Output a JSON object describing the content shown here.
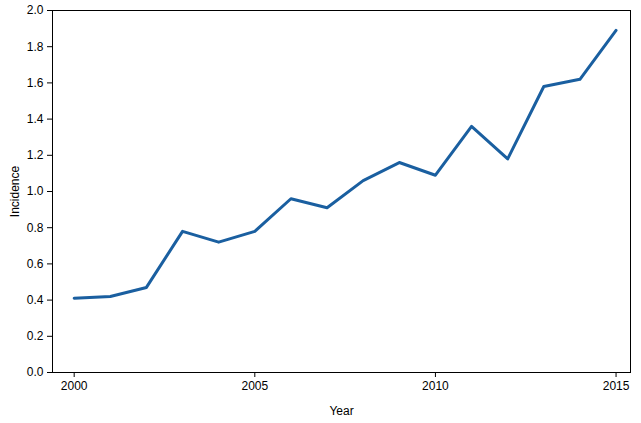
{
  "chart_data": {
    "type": "line",
    "x_label": "Year",
    "y_label": "Incidence",
    "x": [
      2000,
      2001,
      2002,
      2003,
      2004,
      2005,
      2006,
      2007,
      2008,
      2009,
      2010,
      2011,
      2012,
      2013,
      2014,
      2015
    ],
    "values": [
      0.41,
      0.42,
      0.47,
      0.78,
      0.72,
      0.78,
      0.96,
      0.91,
      1.06,
      1.16,
      1.09,
      1.36,
      1.18,
      1.58,
      1.62,
      1.89
    ],
    "color": "#1a5fa0",
    "xlim": [
      1999.4,
      2015.4
    ],
    "xticks": [
      2000,
      2005,
      2010,
      2015
    ],
    "ylim": [
      0,
      2.0
    ],
    "yticks": [
      {
        "value": 0,
        "label": "0.0"
      },
      0.2,
      0.4,
      0.6,
      0.8,
      {
        "value": 1,
        "label": "1.0"
      },
      1.2,
      1.4,
      1.6,
      1.8,
      {
        "value": 2,
        "label": "2.0"
      }
    ],
    "grid": false
  }
}
